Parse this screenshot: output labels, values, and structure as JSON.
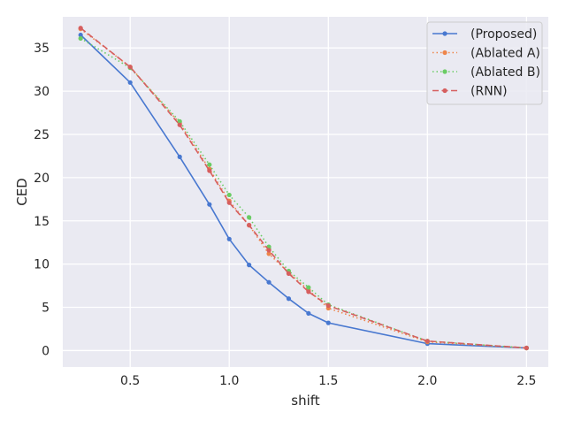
{
  "chart_data": {
    "type": "line",
    "title": "",
    "xlabel": "shift",
    "ylabel": "CED",
    "xlim": [
      0.16,
      2.61
    ],
    "ylim": [
      -1.9,
      38.6
    ],
    "xticks": [
      0.5,
      1.0,
      1.5,
      2.0,
      2.5
    ],
    "xtick_labels": [
      "0.5",
      "1.0",
      "1.5",
      "2.0",
      "2.5"
    ],
    "yticks": [
      0,
      5,
      10,
      15,
      20,
      25,
      30,
      35
    ],
    "ytick_labels": [
      "0",
      "5",
      "10",
      "15",
      "20",
      "25",
      "30",
      "35"
    ],
    "grid": true,
    "legend_position": "top-right",
    "x": [
      0.25,
      0.5,
      0.75,
      0.9,
      1.0,
      1.1,
      1.2,
      1.3,
      1.4,
      1.5,
      2.0,
      2.5
    ],
    "series": [
      {
        "name": "(Proposed)",
        "color": "#4878d0",
        "dash": "solid",
        "values": [
          36.5,
          31.0,
          22.4,
          16.9,
          12.9,
          9.9,
          7.9,
          6.0,
          4.3,
          3.2,
          0.8,
          0.3
        ]
      },
      {
        "name": "(Ablated A)",
        "color": "#ee854a",
        "dash": "dotted",
        "values": [
          37.2,
          32.8,
          26.3,
          21.0,
          17.3,
          14.5,
          11.2,
          9.0,
          7.0,
          4.9,
          1.0,
          0.3
        ]
      },
      {
        "name": "(Ablated B)",
        "color": "#6acc64",
        "dash": "dotted",
        "values": [
          36.1,
          32.7,
          26.5,
          21.5,
          18.0,
          15.4,
          12.0,
          9.2,
          7.3,
          5.3,
          1.1,
          0.3
        ]
      },
      {
        "name": "(RNN)",
        "color": "#d65f5f",
        "dash": "dashed",
        "values": [
          37.3,
          32.8,
          26.1,
          20.8,
          17.1,
          14.5,
          11.6,
          8.9,
          6.8,
          5.2,
          1.1,
          0.3
        ]
      }
    ]
  }
}
